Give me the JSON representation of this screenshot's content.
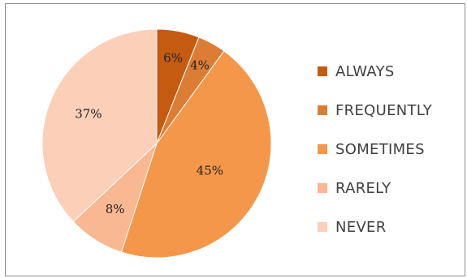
{
  "chart_data": {
    "type": "pie",
    "legend_position": "right",
    "slices": [
      {
        "name": "ALWAYS",
        "value": 6,
        "label": "6%",
        "color": "#c55a11"
      },
      {
        "name": "FREQUENTLY",
        "value": 4,
        "label": "4%",
        "color": "#dd7d35"
      },
      {
        "name": "SOMETIMES",
        "value": 45,
        "label": "45%",
        "color": "#f4974a"
      },
      {
        "name": "RARELY",
        "value": 8,
        "label": "8%",
        "color": "#f9b792"
      },
      {
        "name": "NEVER",
        "value": 37,
        "label": "37%",
        "color": "#fbcfb8"
      }
    ]
  }
}
